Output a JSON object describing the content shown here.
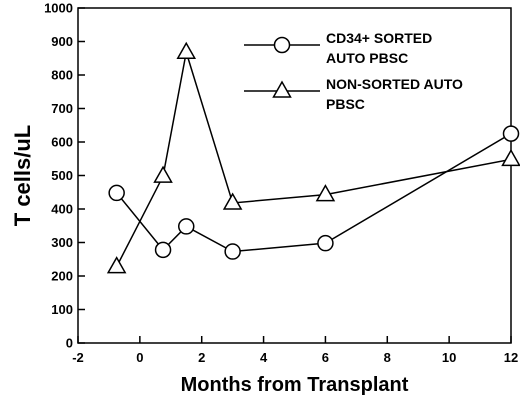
{
  "chart_data": {
    "type": "line",
    "xlabel": "Months from Transplant",
    "ylabel": "T cells/uL",
    "xlim": [
      -2,
      12
    ],
    "ylim": [
      0,
      1000
    ],
    "x_ticks": [
      -2,
      0,
      2,
      4,
      6,
      8,
      10,
      12
    ],
    "y_ticks": [
      0,
      100,
      200,
      300,
      400,
      500,
      600,
      700,
      800,
      900,
      1000
    ],
    "grid": false,
    "legend_position": "top-right",
    "series": [
      {
        "name_lines": [
          "CD34+ SORTED",
          "AUTO PBSC"
        ],
        "marker": "circle",
        "x": [
          -0.75,
          0.75,
          1.5,
          3,
          6,
          12
        ],
        "y": [
          448,
          278,
          348,
          273,
          298,
          625
        ]
      },
      {
        "name_lines": [
          "NON-SORTED AUTO",
          "PBSC"
        ],
        "marker": "triangle",
        "x": [
          -0.75,
          0.75,
          1.5,
          3,
          6,
          12
        ],
        "y": [
          228,
          498,
          868,
          418,
          443,
          548
        ]
      }
    ]
  }
}
